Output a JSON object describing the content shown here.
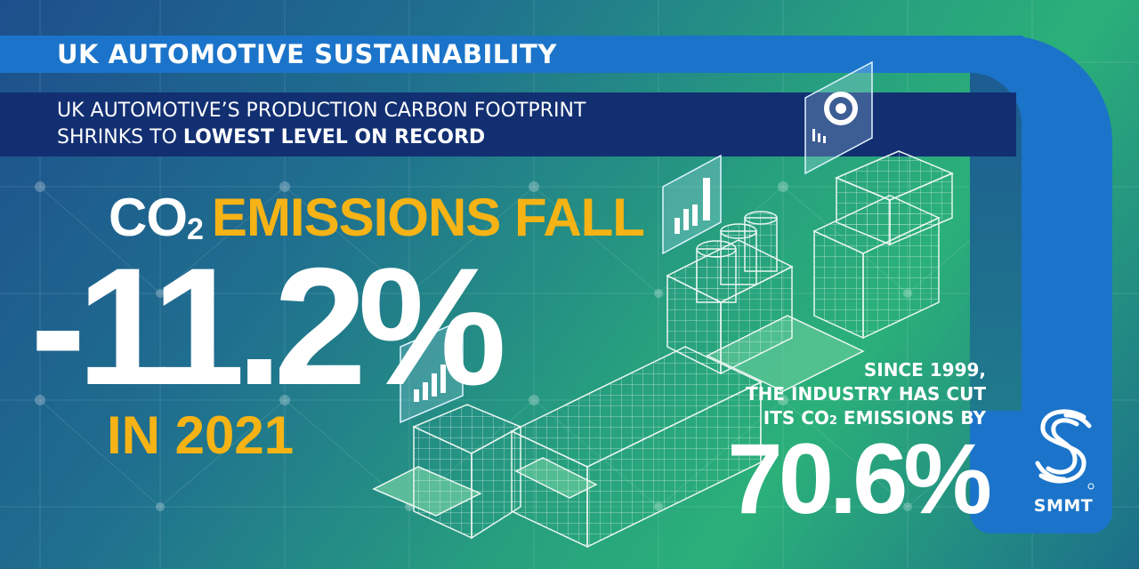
{
  "banner": {
    "title": "UK AUTOMOTIVE SUSTAINABILITY",
    "subtitle_line1": "UK AUTOMOTIVE’S PRODUCTION CARBON FOOTPRINT",
    "subtitle_line2_prefix": "SHRINKS TO ",
    "subtitle_line2_bold": "LOWEST LEVEL ON RECORD"
  },
  "headline": {
    "co2_prefix": "CO",
    "co2_subscript": "2",
    "emissions_text": "EMISSIONS FALL",
    "percent_change": "-11.2%",
    "year_text": "IN 2021"
  },
  "since_block": {
    "line1": "SINCE 1999,",
    "line2": "THE INDUSTRY HAS CUT",
    "line3_prefix": "ITS CO",
    "line3_subscript": "2",
    "line3_suffix": " EMISSIONS BY",
    "percent": "70.6%"
  },
  "logo": {
    "name": "SMMT"
  },
  "colors": {
    "accent_yellow": "#f5b315",
    "banner_blue": "#1b74c9",
    "navy": "#122f72",
    "white": "#ffffff"
  },
  "icons": [
    "network-dots-background",
    "factory-production-line-illustration",
    "bar-chart-icon",
    "gear-icon",
    "smmt-logo-icon"
  ]
}
